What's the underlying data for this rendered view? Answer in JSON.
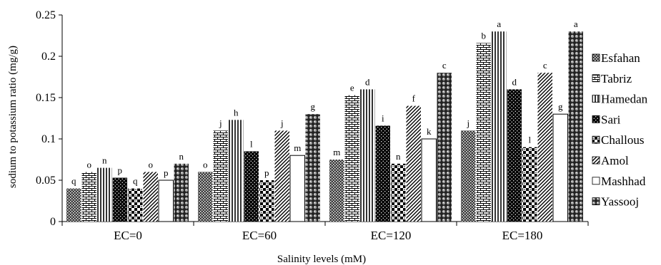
{
  "chart_data": {
    "type": "bar",
    "title": "",
    "xlabel": "Salinity levels (mM)",
    "ylabel": "sodium to potassium ratio (mg/g)",
    "ylim": [
      0,
      0.25
    ],
    "yticks": [
      "0",
      "0.05",
      "0.1",
      "0.15",
      "0.2",
      "0.25"
    ],
    "grid": false,
    "legend_position": "right",
    "categories": [
      "EC=0",
      "EC=60",
      "EC=120",
      "EC=180"
    ],
    "series": [
      {
        "name": "Esfahan",
        "pattern": "dots-dark",
        "values": [
          0.04,
          0.06,
          0.075,
          0.11
        ],
        "letters": [
          "q",
          "o",
          "m",
          "j"
        ]
      },
      {
        "name": "Tabriz",
        "pattern": "brick",
        "values": [
          0.06,
          0.11,
          0.153,
          0.216
        ],
        "letters": [
          "o",
          "j",
          "e",
          "b"
        ]
      },
      {
        "name": "Hamedan",
        "pattern": "vertical",
        "values": [
          0.065,
          0.123,
          0.16,
          0.23
        ],
        "letters": [
          "n",
          "h",
          "d",
          "a"
        ]
      },
      {
        "name": "Sari",
        "pattern": "dots-black",
        "values": [
          0.053,
          0.085,
          0.116,
          0.16
        ],
        "letters": [
          "p",
          "l",
          "i",
          "d"
        ]
      },
      {
        "name": "Challous",
        "pattern": "checker",
        "values": [
          0.04,
          0.05,
          0.07,
          0.09
        ],
        "letters": [
          "q",
          "p",
          "n",
          "l"
        ]
      },
      {
        "name": "Amol",
        "pattern": "diagonal",
        "values": [
          0.06,
          0.11,
          0.14,
          0.18
        ],
        "letters": [
          "o",
          "j",
          "f",
          "c"
        ]
      },
      {
        "name": "Mashhad",
        "pattern": "white",
        "values": [
          0.05,
          0.08,
          0.1,
          0.13
        ],
        "letters": [
          "p",
          "m",
          "k",
          "g"
        ]
      },
      {
        "name": "Yassooj",
        "pattern": "sphere",
        "values": [
          0.07,
          0.13,
          0.18,
          0.23
        ],
        "letters": [
          "n",
          "g",
          "c",
          "a"
        ]
      }
    ]
  }
}
